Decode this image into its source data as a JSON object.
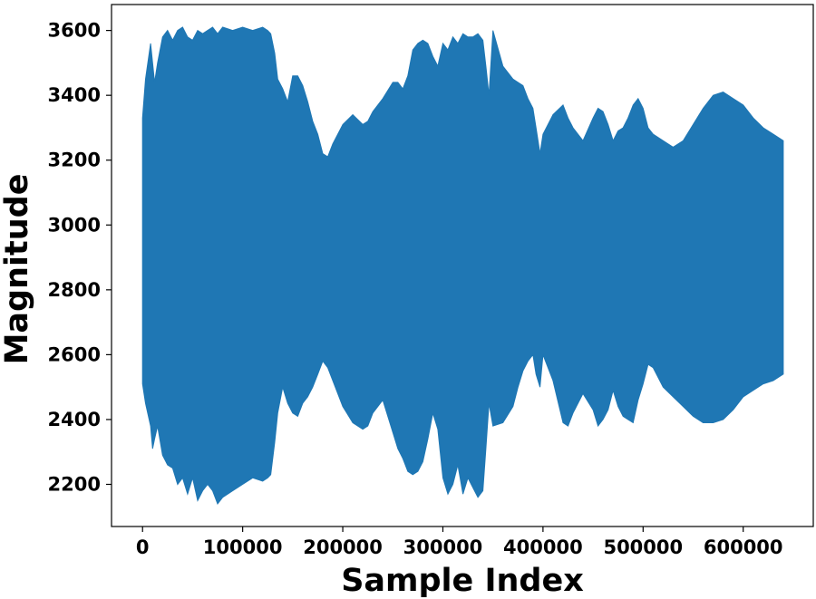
{
  "chart_data": {
    "type": "area",
    "title": "",
    "xlabel": "Sample Index",
    "ylabel": "Magnitude",
    "xlim": [
      -31000,
      670000
    ],
    "ylim": [
      2070,
      3680
    ],
    "xticks": [
      0,
      100000,
      200000,
      300000,
      400000,
      500000,
      600000
    ],
    "yticks": [
      2200,
      2400,
      2600,
      2800,
      3000,
      3200,
      3400,
      3600
    ],
    "grid": false,
    "legend": "none",
    "color": "#1f77b4",
    "series": [
      {
        "x": [
          0,
          3000,
          8000,
          10000,
          12000,
          15000,
          20000,
          25000,
          30000,
          35000,
          40000,
          45000,
          50000,
          55000,
          60000,
          65000,
          70000,
          75000,
          80000,
          90000,
          100000,
          110000,
          120000,
          125000,
          128000,
          132000,
          135000,
          140000,
          145000,
          150000,
          155000,
          160000,
          165000,
          170000,
          175000,
          180000,
          185000,
          190000,
          200000,
          210000,
          220000,
          225000,
          230000,
          240000,
          250000,
          255000,
          260000,
          265000,
          270000,
          275000,
          280000,
          285000,
          290000,
          295000,
          300000,
          305000,
          310000,
          315000,
          320000,
          325000,
          330000,
          335000,
          340000,
          343000,
          346000,
          350000,
          360000,
          370000,
          375000,
          380000,
          385000,
          390000,
          393000,
          397000,
          400000,
          410000,
          420000,
          425000,
          430000,
          440000,
          450000,
          455000,
          460000,
          465000,
          470000,
          475000,
          480000,
          485000,
          490000,
          495000,
          500000,
          505000,
          510000,
          520000,
          530000,
          540000,
          550000,
          560000,
          570000,
          580000,
          590000,
          600000,
          610000,
          620000,
          630000,
          640000
        ],
        "upper": [
          3330,
          3450,
          3560,
          3500,
          3440,
          3500,
          3580,
          3600,
          3570,
          3600,
          3610,
          3580,
          3570,
          3600,
          3590,
          3600,
          3610,
          3590,
          3610,
          3600,
          3610,
          3600,
          3610,
          3600,
          3590,
          3530,
          3450,
          3420,
          3380,
          3460,
          3460,
          3430,
          3380,
          3320,
          3280,
          3220,
          3210,
          3250,
          3310,
          3340,
          3310,
          3320,
          3350,
          3390,
          3440,
          3440,
          3420,
          3460,
          3540,
          3560,
          3570,
          3560,
          3520,
          3490,
          3560,
          3540,
          3580,
          3560,
          3590,
          3580,
          3580,
          3590,
          3570,
          3490,
          3400,
          3600,
          3490,
          3450,
          3440,
          3430,
          3390,
          3360,
          3300,
          3220,
          3280,
          3340,
          3370,
          3330,
          3300,
          3260,
          3330,
          3360,
          3350,
          3310,
          3260,
          3290,
          3300,
          3330,
          3370,
          3390,
          3360,
          3300,
          3280,
          3260,
          3240,
          3260,
          3310,
          3360,
          3400,
          3410,
          3390,
          3370,
          3330,
          3300,
          3280,
          3260
        ],
        "lower": [
          2510,
          2450,
          2380,
          2310,
          2340,
          2380,
          2290,
          2260,
          2250,
          2200,
          2220,
          2170,
          2220,
          2150,
          2180,
          2200,
          2180,
          2140,
          2160,
          2180,
          2200,
          2220,
          2210,
          2220,
          2230,
          2330,
          2420,
          2500,
          2450,
          2420,
          2410,
          2450,
          2470,
          2500,
          2540,
          2580,
          2560,
          2520,
          2440,
          2390,
          2370,
          2380,
          2420,
          2460,
          2360,
          2310,
          2280,
          2240,
          2230,
          2240,
          2270,
          2340,
          2420,
          2370,
          2220,
          2170,
          2200,
          2260,
          2170,
          2220,
          2190,
          2160,
          2180,
          2310,
          2450,
          2380,
          2390,
          2440,
          2500,
          2550,
          2580,
          2600,
          2540,
          2500,
          2600,
          2520,
          2390,
          2380,
          2420,
          2480,
          2430,
          2380,
          2400,
          2430,
          2490,
          2440,
          2410,
          2400,
          2390,
          2460,
          2510,
          2570,
          2560,
          2500,
          2470,
          2440,
          2410,
          2390,
          2390,
          2400,
          2430,
          2470,
          2490,
          2510,
          2520,
          2540
        ]
      }
    ]
  }
}
